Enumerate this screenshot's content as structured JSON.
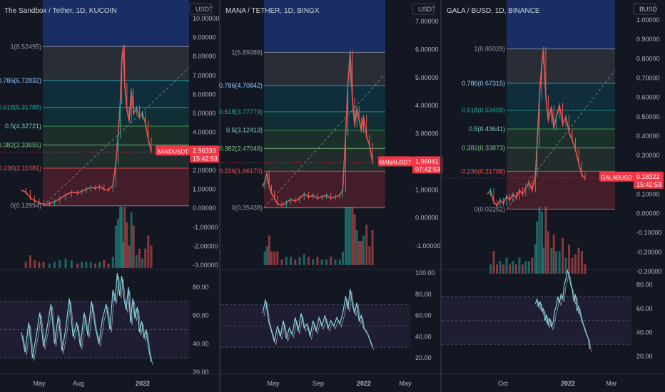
{
  "colors": {
    "background": "#131722",
    "grid": "#2a2e39",
    "axis_text": "#b2b5be",
    "up_candle": "#26a69a",
    "down_candle": "#ef5350",
    "price_label_bg": "#f23645",
    "rsi_line": "#7fd8e6",
    "rsi_band": "#7e57c2"
  },
  "panels": [
    {
      "title": "The Sandbox / Tether, 1D, KUCOIN",
      "currency": "USDT",
      "symbol": "SANDUSDT",
      "last_price": "2.96333",
      "countdown": "15:42:53",
      "price_ticks": [
        "10.00000",
        "9.00000",
        "8.00000",
        "7.00000",
        "6.00000",
        "5.00000",
        "4.00000",
        "3.00000",
        "2.00000",
        "1.00000",
        "0.00000",
        "-1.00000",
        "-2.00000",
        "-3.00000"
      ],
      "price_tick_values": [
        10,
        9,
        8,
        7,
        6,
        5,
        4,
        3,
        2,
        1,
        0,
        -1,
        -2,
        -3
      ],
      "fib_levels": [
        {
          "label": "1(8.52495)",
          "value": 8.52495
        },
        {
          "label": "0.786(6.72832)",
          "value": 6.72832
        },
        {
          "label": "0.618(5.31788)",
          "value": 5.31788
        },
        {
          "label": "0.5(4.32721)",
          "value": 4.32721
        },
        {
          "label": "0.382(3.33655)",
          "value": 3.33655
        },
        {
          "label": "0.236(2.11081)",
          "value": 2.11081
        },
        {
          "label": "0(0.12994)",
          "value": 0.12994
        }
      ],
      "price_path": [
        [
          0,
          0.95
        ],
        [
          6,
          0.85
        ],
        [
          12,
          0.55
        ],
        [
          18,
          0.4
        ],
        [
          24,
          0.3
        ],
        [
          30,
          0.2
        ],
        [
          38,
          0.25
        ],
        [
          45,
          0.35
        ],
        [
          52,
          0.5
        ],
        [
          60,
          0.7
        ],
        [
          68,
          0.85
        ],
        [
          76,
          0.8
        ],
        [
          82,
          0.9
        ],
        [
          88,
          1.0
        ],
        [
          94,
          1.1
        ],
        [
          100,
          1.05
        ],
        [
          106,
          1.15
        ],
        [
          112,
          1.0
        ],
        [
          118,
          0.95
        ],
        [
          124,
          1.2
        ],
        [
          128,
          2.4
        ],
        [
          131,
          3.8
        ],
        [
          134,
          5.6
        ],
        [
          136,
          7.8
        ],
        [
          138,
          8.5
        ],
        [
          140,
          6.5
        ],
        [
          143,
          5.2
        ],
        [
          146,
          4.6
        ],
        [
          149,
          6.2
        ],
        [
          152,
          5.0
        ],
        [
          156,
          5.3
        ],
        [
          160,
          4.8
        ],
        [
          164,
          5.0
        ],
        [
          168,
          4.5
        ],
        [
          172,
          3.6
        ],
        [
          176,
          3.0
        ]
      ],
      "rsi_ticks": [
        "80.00",
        "60.00",
        "40.00",
        "20.00"
      ],
      "rsi_tick_values": [
        80,
        60,
        40,
        20
      ],
      "rsi_band": [
        70,
        30
      ],
      "rsi_path": [
        [
          0,
          48
        ],
        [
          5,
          34
        ],
        [
          10,
          55
        ],
        [
          15,
          30
        ],
        [
          20,
          45
        ],
        [
          25,
          62
        ],
        [
          30,
          38
        ],
        [
          35,
          52
        ],
        [
          40,
          68
        ],
        [
          45,
          40
        ],
        [
          50,
          60
        ],
        [
          55,
          35
        ],
        [
          60,
          50
        ],
        [
          65,
          72
        ],
        [
          70,
          45
        ],
        [
          75,
          55
        ],
        [
          80,
          38
        ],
        [
          85,
          62
        ],
        [
          90,
          46
        ],
        [
          95,
          70
        ],
        [
          100,
          52
        ],
        [
          105,
          40
        ],
        [
          110,
          58
        ],
        [
          115,
          68
        ],
        [
          120,
          50
        ],
        [
          124,
          78
        ],
        [
          127,
          70
        ],
        [
          130,
          90
        ],
        [
          133,
          74
        ],
        [
          136,
          88
        ],
        [
          139,
          72
        ],
        [
          142,
          64
        ],
        [
          145,
          80
        ],
        [
          148,
          55
        ],
        [
          151,
          72
        ],
        [
          154,
          58
        ],
        [
          157,
          66
        ],
        [
          160,
          48
        ],
        [
          163,
          56
        ],
        [
          166,
          44
        ],
        [
          169,
          50
        ],
        [
          172,
          38
        ],
        [
          176,
          27
        ]
      ],
      "x_labels": [
        "May",
        "Aug",
        "2022"
      ]
    },
    {
      "title": "MANA / TETHER, 1D, BINGX",
      "currency": "USDT",
      "symbol": "MANAUSDT",
      "last_price": "1.96041",
      "countdown": "07:42:53",
      "price_ticks": [
        "7.00000",
        "6.00000",
        "5.00000",
        "4.00000",
        "3.00000",
        "2.00000",
        "1.00000",
        "0.00000",
        "-1.00000"
      ],
      "price_tick_values": [
        7,
        6,
        5,
        4,
        3,
        2,
        1,
        0,
        -1
      ],
      "fib_levels": [
        {
          "label": "1(5.89388)",
          "value": 5.89388
        },
        {
          "label": "0.786(4.70842)",
          "value": 4.70842
        },
        {
          "label": "0.618(3.77779)",
          "value": 3.77779
        },
        {
          "label": "0.5(3.12413)",
          "value": 3.12413
        },
        {
          "label": "0.382(2.47046)",
          "value": 2.47046
        },
        {
          "label": "0.236(1.66170)",
          "value": 1.6617
        },
        {
          "label": "0(0.35438)",
          "value": 0.35438
        }
      ],
      "price_path": [
        [
          0,
          1.1
        ],
        [
          3,
          1.3
        ],
        [
          6,
          1.6
        ],
        [
          9,
          1.1
        ],
        [
          12,
          0.9
        ],
        [
          16,
          0.7
        ],
        [
          20,
          0.5
        ],
        [
          26,
          0.45
        ],
        [
          32,
          0.55
        ],
        [
          38,
          0.65
        ],
        [
          44,
          0.6
        ],
        [
          50,
          0.7
        ],
        [
          56,
          0.85
        ],
        [
          62,
          0.75
        ],
        [
          68,
          0.8
        ],
        [
          74,
          0.7
        ],
        [
          80,
          0.75
        ],
        [
          86,
          0.8
        ],
        [
          92,
          0.7
        ],
        [
          98,
          0.75
        ],
        [
          104,
          0.8
        ],
        [
          108,
          1.0
        ],
        [
          112,
          3.0
        ],
        [
          115,
          4.8
        ],
        [
          118,
          5.9
        ],
        [
          121,
          4.2
        ],
        [
          124,
          3.3
        ],
        [
          127,
          3.9
        ],
        [
          130,
          3.5
        ],
        [
          133,
          3.1
        ],
        [
          136,
          3.6
        ],
        [
          140,
          2.9
        ],
        [
          144,
          2.6
        ],
        [
          148,
          2.0
        ]
      ],
      "rsi_ticks": [
        "100.00",
        "80.00",
        "60.00",
        "40.00",
        "20.00"
      ],
      "rsi_tick_values": [
        100,
        80,
        60,
        40,
        20
      ],
      "rsi_band": [
        70,
        30
      ],
      "rsi_path": [
        [
          0,
          62
        ],
        [
          4,
          75
        ],
        [
          8,
          55
        ],
        [
          12,
          45
        ],
        [
          16,
          35
        ],
        [
          20,
          50
        ],
        [
          24,
          40
        ],
        [
          28,
          55
        ],
        [
          32,
          38
        ],
        [
          36,
          48
        ],
        [
          40,
          42
        ],
        [
          44,
          58
        ],
        [
          48,
          45
        ],
        [
          52,
          62
        ],
        [
          56,
          48
        ],
        [
          60,
          52
        ],
        [
          64,
          40
        ],
        [
          68,
          55
        ],
        [
          72,
          45
        ],
        [
          76,
          58
        ],
        [
          80,
          50
        ],
        [
          84,
          60
        ],
        [
          88,
          48
        ],
        [
          92,
          55
        ],
        [
          96,
          50
        ],
        [
          100,
          58
        ],
        [
          104,
          52
        ],
        [
          108,
          62
        ],
        [
          112,
          78
        ],
        [
          115,
          66
        ],
        [
          118,
          85
        ],
        [
          121,
          70
        ],
        [
          124,
          62
        ],
        [
          127,
          72
        ],
        [
          130,
          55
        ],
        [
          133,
          60
        ],
        [
          136,
          48
        ],
        [
          140,
          45
        ],
        [
          144,
          38
        ],
        [
          148,
          30
        ]
      ],
      "x_labels": [
        "May",
        "Sep",
        "2022",
        "May"
      ]
    },
    {
      "title": "GALA / BUSD, 1D, BINANCE",
      "currency": "BUSD",
      "symbol": "GALABUSD",
      "last_price": "0.18322",
      "countdown": "15:42:53",
      "price_ticks": [
        "1.00000",
        "0.90000",
        "0.80000",
        "0.70000",
        "0.60000",
        "0.50000",
        "0.40000",
        "0.30000",
        "0.20000",
        "0.10000",
        "0.00000",
        "-0.10000",
        "-0.20000",
        "-0.30000"
      ],
      "price_tick_values": [
        1.0,
        0.9,
        0.8,
        0.7,
        0.6,
        0.5,
        0.4,
        0.3,
        0.2,
        0.1,
        0.0,
        -0.1,
        -0.2,
        -0.3
      ],
      "fib_levels": [
        {
          "label": "1(0.85029)",
          "value": 0.85029
        },
        {
          "label": "0.786(0.67315)",
          "value": 0.67315
        },
        {
          "label": "0.618(0.53409)",
          "value": 0.53409
        },
        {
          "label": "0.5(0.43641)",
          "value": 0.43641
        },
        {
          "label": "0.382(0.33873)",
          "value": 0.33873
        },
        {
          "label": "0.236(0.21788)",
          "value": 0.21788
        },
        {
          "label": "0(0.02252)",
          "value": 0.02252
        }
      ],
      "price_path": [
        [
          0,
          0.1
        ],
        [
          4,
          0.12
        ],
        [
          8,
          0.06
        ],
        [
          12,
          0.04
        ],
        [
          16,
          0.07
        ],
        [
          20,
          0.05
        ],
        [
          24,
          0.09
        ],
        [
          28,
          0.07
        ],
        [
          32,
          0.1
        ],
        [
          36,
          0.08
        ],
        [
          40,
          0.12
        ],
        [
          44,
          0.1
        ],
        [
          48,
          0.13
        ],
        [
          52,
          0.16
        ],
        [
          56,
          0.12
        ],
        [
          60,
          0.2
        ],
        [
          62,
          0.35
        ],
        [
          65,
          0.6
        ],
        [
          68,
          0.78
        ],
        [
          70,
          0.85
        ],
        [
          73,
          0.6
        ],
        [
          76,
          0.48
        ],
        [
          80,
          0.55
        ],
        [
          83,
          0.44
        ],
        [
          86,
          0.5
        ],
        [
          90,
          0.56
        ],
        [
          94,
          0.46
        ],
        [
          98,
          0.5
        ],
        [
          102,
          0.42
        ],
        [
          106,
          0.38
        ],
        [
          110,
          0.33
        ],
        [
          114,
          0.26
        ],
        [
          118,
          0.2
        ],
        [
          122,
          0.18
        ]
      ],
      "rsi_ticks": [
        "80.00",
        "60.00",
        "40.00",
        "20.00"
      ],
      "rsi_tick_values": [
        80,
        60,
        40,
        20
      ],
      "rsi_band": [
        70,
        30
      ],
      "rsi_path": [
        [
          60,
          64
        ],
        [
          62,
          68
        ],
        [
          64,
          62
        ],
        [
          66,
          66
        ],
        [
          68,
          58
        ],
        [
          70,
          60
        ],
        [
          72,
          50
        ],
        [
          74,
          55
        ],
        [
          76,
          46
        ],
        [
          78,
          52
        ],
        [
          80,
          45
        ],
        [
          82,
          48
        ],
        [
          84,
          58
        ],
        [
          86,
          62
        ],
        [
          88,
          70
        ],
        [
          90,
          65
        ],
        [
          92,
          72
        ],
        [
          94,
          68
        ],
        [
          96,
          80
        ],
        [
          98,
          85
        ],
        [
          100,
          92
        ],
        [
          102,
          88
        ],
        [
          104,
          80
        ],
        [
          106,
          76
        ],
        [
          108,
          66
        ],
        [
          110,
          72
        ],
        [
          112,
          58
        ],
        [
          114,
          62
        ],
        [
          116,
          55
        ],
        [
          118,
          50
        ],
        [
          120,
          46
        ],
        [
          122,
          42
        ],
        [
          124,
          38
        ],
        [
          126,
          35
        ],
        [
          128,
          26
        ]
      ],
      "x_labels": [
        "Oct",
        "2022",
        "Mar"
      ]
    }
  ]
}
